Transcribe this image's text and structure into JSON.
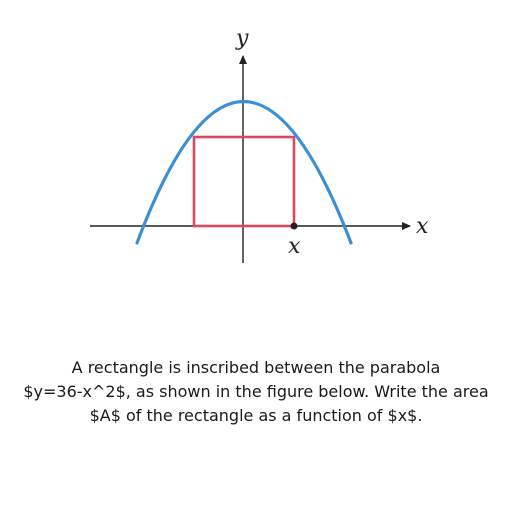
{
  "figure": {
    "y_axis_label": "y",
    "x_axis_label": "x",
    "point_label": "x",
    "colors": {
      "parabola": "#3a8fd6",
      "rectangle": "#d9485f",
      "axes": "#222222",
      "point": "#222222"
    }
  },
  "caption": {
    "line1": "A rectangle is inscribed between the parabola",
    "line2": "$y=36-x^2$, as shown in the figure below. Write the area",
    "line3": "$A$ of the rectangle as a function of $x$."
  }
}
